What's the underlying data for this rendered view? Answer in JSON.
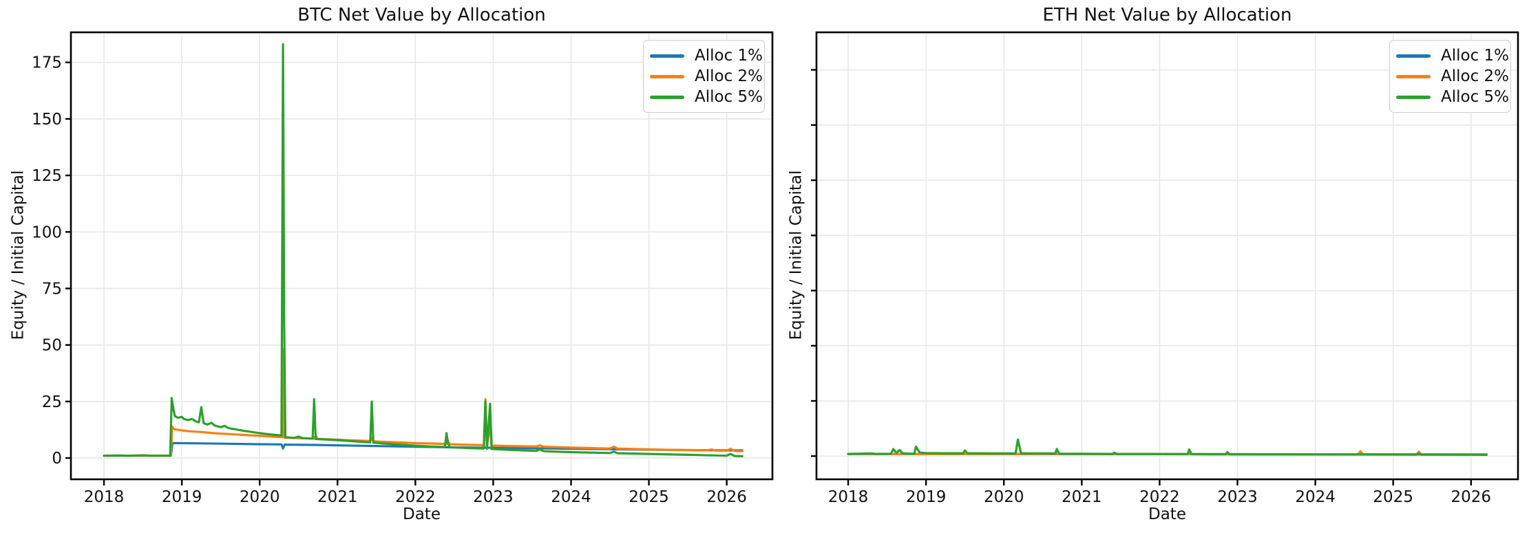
{
  "figure": {
    "background": "#ffffff",
    "text_color": "#111111",
    "grid_color": "#e7e7e7",
    "spine_color": "#000000"
  },
  "chart_data": [
    {
      "type": "line",
      "title": "BTC Net Value by Allocation",
      "xlabel": "Date",
      "ylabel": "Equity / Initial Capital",
      "grid": true,
      "legend_position": "upper right",
      "x_ticks": [
        2018,
        2019,
        2020,
        2021,
        2022,
        2023,
        2024,
        2025,
        2026
      ],
      "y_ticks": [
        0,
        25,
        50,
        75,
        100,
        125,
        150,
        175
      ],
      "y_tick_labels": true,
      "xlim": [
        2017.575,
        2026.587
      ],
      "ylim": [
        -9.42,
        188.3
      ],
      "series": [
        {
          "name": "Alloc 1%",
          "color": "#1f77b4",
          "points": [
            [
              2018.0,
              1
            ],
            [
              2018.86,
              1
            ],
            [
              2018.88,
              6.6
            ],
            [
              2019.2,
              6.5
            ],
            [
              2019.6,
              6.3
            ],
            [
              2020.0,
              6.1
            ],
            [
              2020.28,
              6.0
            ],
            [
              2020.3,
              4.2
            ],
            [
              2020.32,
              5.9
            ],
            [
              2020.7,
              5.8
            ],
            [
              2021.0,
              5.6
            ],
            [
              2021.5,
              5.3
            ],
            [
              2022.0,
              5.0
            ],
            [
              2022.5,
              4.7
            ],
            [
              2023.0,
              4.5
            ],
            [
              2023.5,
              4.3
            ],
            [
              2024.0,
              4.1
            ],
            [
              2024.5,
              3.9
            ],
            [
              2025.0,
              3.7
            ],
            [
              2025.5,
              3.5
            ],
            [
              2026.0,
              3.4
            ],
            [
              2026.2,
              3.35
            ]
          ]
        },
        {
          "name": "Alloc 2%",
          "color": "#ff7f0e",
          "points": [
            [
              2018.0,
              1
            ],
            [
              2018.86,
              1
            ],
            [
              2018.875,
              14
            ],
            [
              2018.9,
              12.8
            ],
            [
              2019.0,
              12.2
            ],
            [
              2019.1,
              11.8
            ],
            [
              2019.25,
              11.5
            ],
            [
              2019.4,
              11.0
            ],
            [
              2019.6,
              10.6
            ],
            [
              2019.8,
              10.2
            ],
            [
              2020.0,
              9.8
            ],
            [
              2020.2,
              9.4
            ],
            [
              2020.29,
              9.2
            ],
            [
              2020.3,
              48
            ],
            [
              2020.315,
              9.0
            ],
            [
              2020.5,
              8.8
            ],
            [
              2020.7,
              8.6
            ],
            [
              2020.72,
              10
            ],
            [
              2020.74,
              8.5
            ],
            [
              2021.0,
              8.1
            ],
            [
              2021.2,
              7.8
            ],
            [
              2021.42,
              7.5
            ],
            [
              2021.44,
              9.0
            ],
            [
              2021.46,
              7.4
            ],
            [
              2021.7,
              7.0
            ],
            [
              2022.0,
              6.6
            ],
            [
              2022.2,
              6.4
            ],
            [
              2022.4,
              6.2
            ],
            [
              2022.42,
              7.5
            ],
            [
              2022.44,
              6.1
            ],
            [
              2022.6,
              5.9
            ],
            [
              2022.88,
              5.7
            ],
            [
              2022.9,
              26
            ],
            [
              2022.92,
              5.6
            ],
            [
              2022.96,
              14
            ],
            [
              2022.98,
              5.5
            ],
            [
              2023.2,
              5.3
            ],
            [
              2023.55,
              5.1
            ],
            [
              2023.6,
              5.6
            ],
            [
              2023.65,
              5.0
            ],
            [
              2024.0,
              4.6
            ],
            [
              2024.5,
              4.2
            ],
            [
              2024.55,
              5.0
            ],
            [
              2024.6,
              4.15
            ],
            [
              2025.0,
              3.8
            ],
            [
              2025.3,
              3.6
            ],
            [
              2025.75,
              3.4
            ],
            [
              2025.8,
              3.8
            ],
            [
              2025.85,
              3.3
            ],
            [
              2026.0,
              3.2
            ],
            [
              2026.05,
              4.1
            ],
            [
              2026.1,
              3.1
            ],
            [
              2026.2,
              3.0
            ]
          ]
        },
        {
          "name": "Alloc 5%",
          "color": "#2ca02c",
          "points": [
            [
              2018.0,
              1
            ],
            [
              2018.2,
              1.15
            ],
            [
              2018.3,
              1
            ],
            [
              2018.5,
              1.2
            ],
            [
              2018.6,
              1
            ],
            [
              2018.85,
              1
            ],
            [
              2018.87,
              26.5
            ],
            [
              2018.89,
              22
            ],
            [
              2018.91,
              18.5
            ],
            [
              2018.95,
              17.8
            ],
            [
              2019.0,
              18.2
            ],
            [
              2019.03,
              17.2
            ],
            [
              2019.08,
              16.8
            ],
            [
              2019.13,
              17.3
            ],
            [
              2019.18,
              16.2
            ],
            [
              2019.22,
              15.8
            ],
            [
              2019.25,
              22.5
            ],
            [
              2019.28,
              15.4
            ],
            [
              2019.33,
              14.8
            ],
            [
              2019.38,
              15.6
            ],
            [
              2019.42,
              14.4
            ],
            [
              2019.5,
              13.6
            ],
            [
              2019.55,
              14.2
            ],
            [
              2019.6,
              13.2
            ],
            [
              2019.7,
              12.6
            ],
            [
              2019.8,
              12.0
            ],
            [
              2019.9,
              11.5
            ],
            [
              2020.0,
              11.0
            ],
            [
              2020.1,
              10.6
            ],
            [
              2020.2,
              10.2
            ],
            [
              2020.28,
              10.0
            ],
            [
              2020.3,
              183
            ],
            [
              2020.315,
              60
            ],
            [
              2020.33,
              9.2
            ],
            [
              2020.45,
              8.9
            ],
            [
              2020.5,
              9.5
            ],
            [
              2020.55,
              8.8
            ],
            [
              2020.68,
              8.6
            ],
            [
              2020.7,
              26
            ],
            [
              2020.72,
              8.4
            ],
            [
              2020.85,
              8.2
            ],
            [
              2021.0,
              7.9
            ],
            [
              2021.2,
              7.4
            ],
            [
              2021.42,
              6.9
            ],
            [
              2021.44,
              25
            ],
            [
              2021.46,
              6.8
            ],
            [
              2021.6,
              6.4
            ],
            [
              2021.8,
              5.9
            ],
            [
              2022.0,
              5.5
            ],
            [
              2022.2,
              5.1
            ],
            [
              2022.38,
              4.9
            ],
            [
              2022.4,
              11
            ],
            [
              2022.42,
              6.5
            ],
            [
              2022.44,
              4.8
            ],
            [
              2022.6,
              4.5
            ],
            [
              2022.75,
              4.3
            ],
            [
              2022.88,
              4.2
            ],
            [
              2022.9,
              25
            ],
            [
              2022.92,
              4.1
            ],
            [
              2022.96,
              24
            ],
            [
              2022.98,
              4.0
            ],
            [
              2023.2,
              3.6
            ],
            [
              2023.5,
              3.2
            ],
            [
              2023.55,
              3.1
            ],
            [
              2023.6,
              3.8
            ],
            [
              2023.65,
              3.0
            ],
            [
              2024.0,
              2.6
            ],
            [
              2024.5,
              2.2
            ],
            [
              2024.55,
              2.8
            ],
            [
              2024.6,
              2.1
            ],
            [
              2025.0,
              1.8
            ],
            [
              2025.5,
              1.4
            ],
            [
              2026.0,
              1.0
            ],
            [
              2026.05,
              1.8
            ],
            [
              2026.1,
              0.9
            ],
            [
              2026.2,
              0.8
            ]
          ]
        }
      ]
    },
    {
      "type": "line",
      "title": "ETH Net Value by Allocation",
      "xlabel": "Date",
      "ylabel": "Equity / Initial Capital",
      "grid": true,
      "legend_position": "upper right",
      "x_ticks": [
        2018,
        2019,
        2020,
        2021,
        2022,
        2023,
        2024,
        2025,
        2026
      ],
      "y_ticks": [
        0,
        25,
        50,
        75,
        100,
        125,
        150,
        175
      ],
      "y_tick_labels": false,
      "xlim": [
        2017.593,
        2026.603
      ],
      "ylim": [
        -10.5,
        192.0
      ],
      "series": [
        {
          "name": "Alloc 1%",
          "color": "#1f77b4",
          "points": [
            [
              2018.0,
              1
            ],
            [
              2019.0,
              0.98
            ],
            [
              2020.0,
              0.96
            ],
            [
              2021.0,
              0.93
            ],
            [
              2022.0,
              0.9
            ],
            [
              2023.0,
              0.87
            ],
            [
              2024.0,
              0.84
            ],
            [
              2025.0,
              0.8
            ],
            [
              2026.2,
              0.75
            ]
          ]
        },
        {
          "name": "Alloc 2%",
          "color": "#ff7f0e",
          "points": [
            [
              2018.0,
              1
            ],
            [
              2019.0,
              1.0
            ],
            [
              2020.0,
              0.98
            ],
            [
              2021.0,
              0.95
            ],
            [
              2022.0,
              0.92
            ],
            [
              2023.0,
              0.88
            ],
            [
              2024.0,
              0.85
            ],
            [
              2024.55,
              0.84
            ],
            [
              2024.58,
              2.2
            ],
            [
              2024.61,
              0.83
            ],
            [
              2025.0,
              0.8
            ],
            [
              2025.3,
              0.79
            ],
            [
              2025.33,
              2.0
            ],
            [
              2025.36,
              0.78
            ],
            [
              2026.0,
              0.74
            ],
            [
              2026.2,
              0.72
            ]
          ]
        },
        {
          "name": "Alloc 5%",
          "color": "#2ca02c",
          "points": [
            [
              2018.0,
              1
            ],
            [
              2018.3,
              1.2
            ],
            [
              2018.35,
              1
            ],
            [
              2018.55,
              1.1
            ],
            [
              2018.58,
              3.2
            ],
            [
              2018.62,
              1.5
            ],
            [
              2018.66,
              2.8
            ],
            [
              2018.7,
              1.2
            ],
            [
              2018.85,
              1.1
            ],
            [
              2018.87,
              4.3
            ],
            [
              2018.92,
              1.6
            ],
            [
              2019.0,
              1.4
            ],
            [
              2019.2,
              1.3
            ],
            [
              2019.48,
              1.3
            ],
            [
              2019.5,
              2.6
            ],
            [
              2019.53,
              1.3
            ],
            [
              2019.9,
              1.2
            ],
            [
              2020.15,
              1.2
            ],
            [
              2020.18,
              7.5
            ],
            [
              2020.22,
              1.3
            ],
            [
              2020.3,
              1.2
            ],
            [
              2020.66,
              1.2
            ],
            [
              2020.68,
              3.2
            ],
            [
              2020.71,
              1.1
            ],
            [
              2021.0,
              1.1
            ],
            [
              2021.4,
              1.0
            ],
            [
              2021.42,
              1.6
            ],
            [
              2021.45,
              1.0
            ],
            [
              2022.0,
              0.95
            ],
            [
              2022.36,
              0.93
            ],
            [
              2022.38,
              3.0
            ],
            [
              2022.41,
              0.9
            ],
            [
              2022.6,
              0.88
            ],
            [
              2022.85,
              0.87
            ],
            [
              2022.87,
              1.8
            ],
            [
              2022.9,
              0.85
            ],
            [
              2023.0,
              0.84
            ],
            [
              2023.6,
              0.8
            ],
            [
              2024.0,
              0.77
            ],
            [
              2024.55,
              0.74
            ],
            [
              2025.0,
              0.7
            ],
            [
              2025.3,
              0.68
            ],
            [
              2025.33,
              1.2
            ],
            [
              2025.36,
              0.67
            ],
            [
              2026.0,
              0.62
            ],
            [
              2026.2,
              0.6
            ]
          ]
        }
      ]
    }
  ]
}
